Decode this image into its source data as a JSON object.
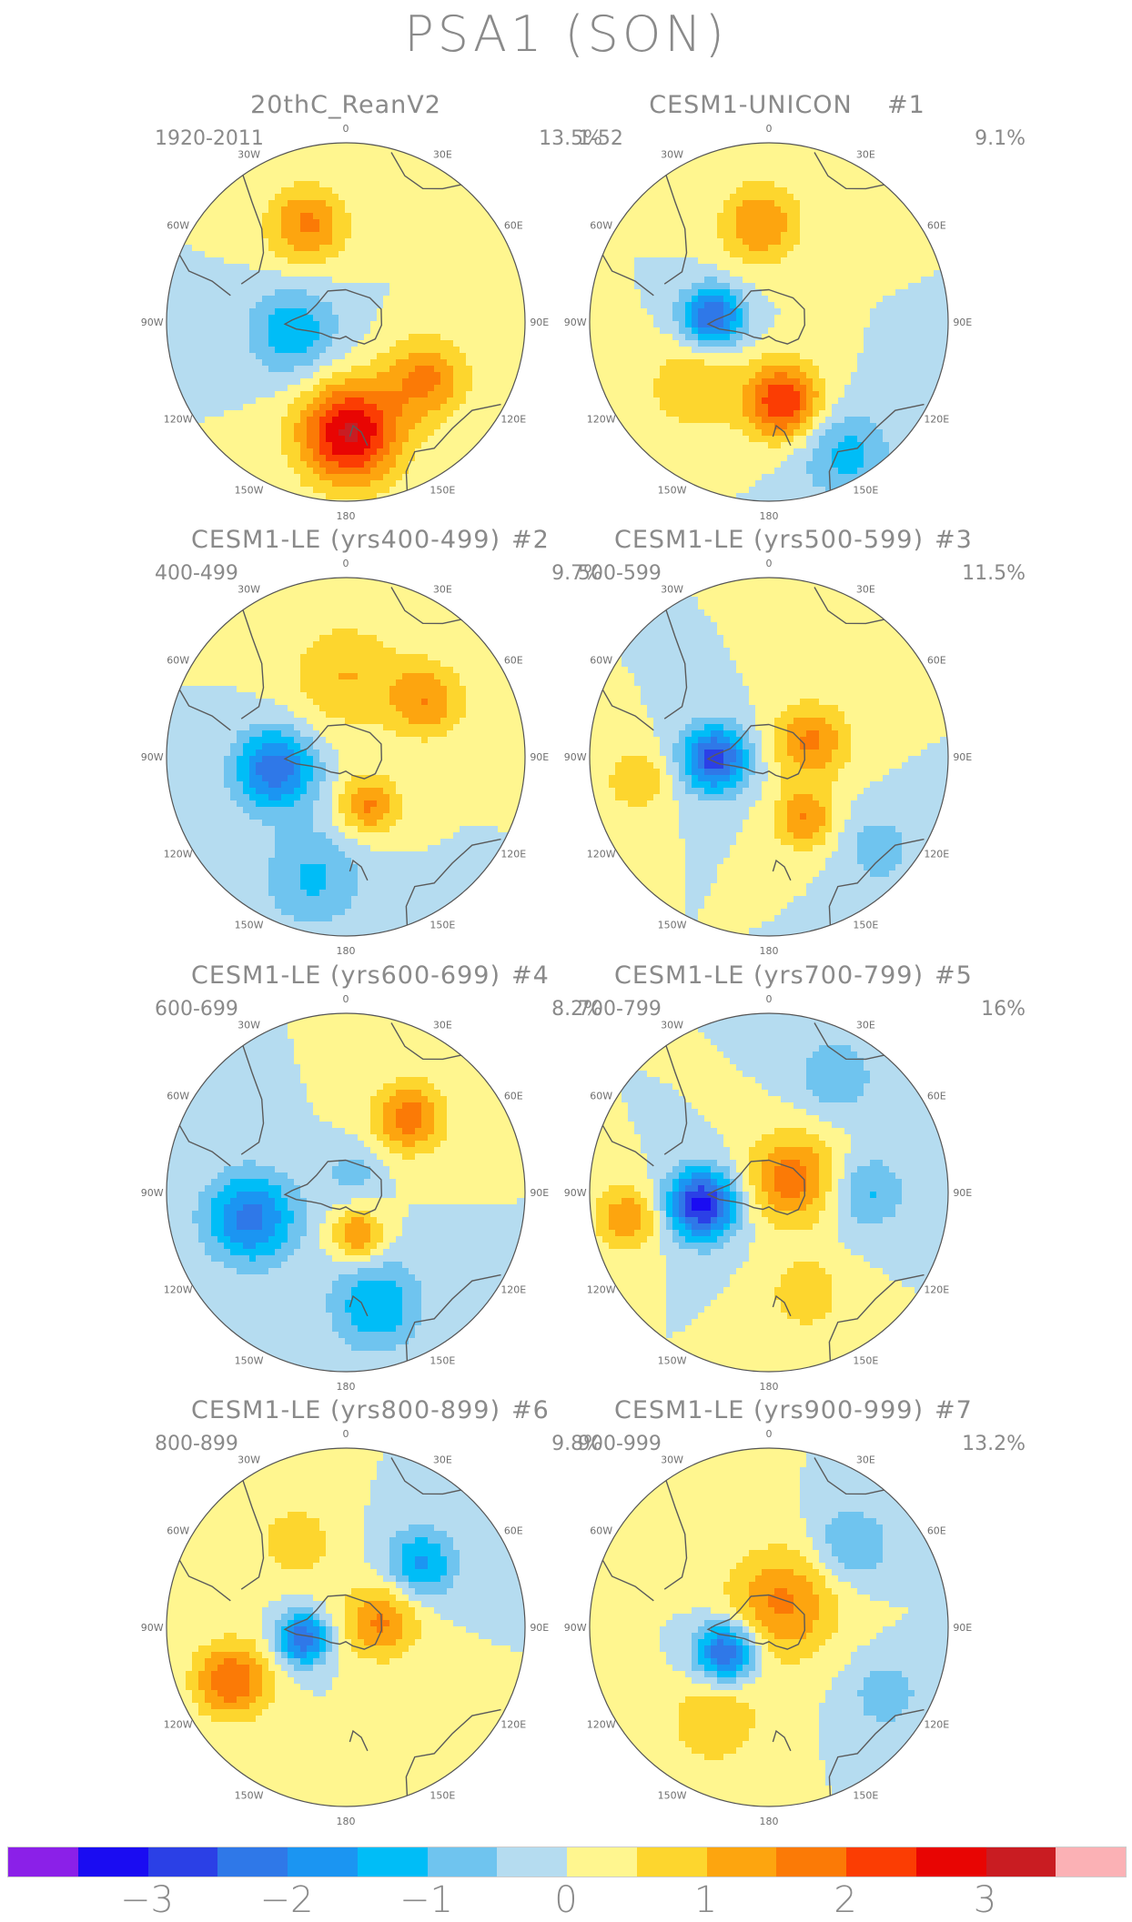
{
  "title": "PSA1 (SON)",
  "panels": [
    {
      "title": "20thC_ReanV2",
      "number": "",
      "years": "1920-2011",
      "percent": "13.5%",
      "features": [
        {
          "sign": 1,
          "amp": 3.1,
          "lon": 178,
          "r": 0.62,
          "s": 0.2
        },
        {
          "sign": 1,
          "amp": 1.6,
          "lon": 125,
          "r": 0.55,
          "s": 0.16
        },
        {
          "sign": 1,
          "amp": 1.6,
          "lon": -22,
          "r": 0.58,
          "s": 0.16
        },
        {
          "sign": -1,
          "amp": 1.4,
          "lon": -100,
          "r": 0.3,
          "s": 0.18
        }
      ]
    },
    {
      "title": "CESM1-UNICON",
      "number": "#1",
      "years": "1-52",
      "percent": "9.1%",
      "features": [
        {
          "sign": -1,
          "amp": 2.6,
          "lon": -85,
          "r": 0.32,
          "s": 0.12
        },
        {
          "sign": 1,
          "amp": 2.5,
          "lon": 170,
          "r": 0.45,
          "s": 0.15
        },
        {
          "sign": 1,
          "amp": 1.5,
          "lon": -5,
          "r": 0.55,
          "s": 0.16
        },
        {
          "sign": -1,
          "amp": 1.2,
          "lon": 150,
          "r": 0.85,
          "s": 0.18
        },
        {
          "sign": 1,
          "amp": 1.0,
          "lon": -130,
          "r": 0.55,
          "s": 0.18
        }
      ]
    },
    {
      "title": "CESM1-LE (yrs400-499)",
      "number": "#2",
      "years": "400-499",
      "percent": "9.7%",
      "features": [
        {
          "sign": -1,
          "amp": 2.4,
          "lon": -100,
          "r": 0.4,
          "s": 0.16
        },
        {
          "sign": 1,
          "amp": 1.6,
          "lon": 155,
          "r": 0.3,
          "s": 0.12
        },
        {
          "sign": 1,
          "amp": 1.4,
          "lon": 55,
          "r": 0.55,
          "s": 0.15
        },
        {
          "sign": -1,
          "amp": 1.1,
          "lon": -165,
          "r": 0.7,
          "s": 0.2
        },
        {
          "sign": 1,
          "amp": 1.0,
          "lon": 0,
          "r": 0.45,
          "s": 0.22
        }
      ]
    },
    {
      "title": "CESM1-LE (yrs500-599)",
      "number": "#3",
      "years": "500-599",
      "percent": "11.5%",
      "features": [
        {
          "sign": -1,
          "amp": 2.8,
          "lon": -92,
          "r": 0.3,
          "s": 0.13
        },
        {
          "sign": 1,
          "amp": 1.6,
          "lon": 70,
          "r": 0.25,
          "s": 0.15
        },
        {
          "sign": 1,
          "amp": 1.5,
          "lon": 150,
          "r": 0.4,
          "s": 0.12
        },
        {
          "sign": 1,
          "amp": 1.0,
          "lon": -100,
          "r": 0.75,
          "s": 0.12
        },
        {
          "sign": -1,
          "amp": 0.8,
          "lon": 130,
          "r": 0.8,
          "s": 0.15
        }
      ]
    },
    {
      "title": "CESM1-LE (yrs600-699)",
      "number": "#4",
      "years": "600-699",
      "percent": "8.2%",
      "features": [
        {
          "sign": -1,
          "amp": 2.2,
          "lon": -105,
          "r": 0.55,
          "s": 0.18
        },
        {
          "sign": 1,
          "amp": 1.8,
          "lon": 40,
          "r": 0.55,
          "s": 0.14
        },
        {
          "sign": 1,
          "amp": 1.6,
          "lon": 165,
          "r": 0.25,
          "s": 0.1
        },
        {
          "sign": -1,
          "amp": 1.5,
          "lon": 165,
          "r": 0.65,
          "s": 0.18
        },
        {
          "sign": -1,
          "amp": 0.8,
          "lon": 20,
          "r": 0.12,
          "s": 0.1
        }
      ]
    },
    {
      "title": "CESM1-LE (yrs700-799)",
      "number": "#5",
      "years": "700-799",
      "percent": "16%",
      "features": [
        {
          "sign": -1,
          "amp": 3.2,
          "lon": -100,
          "r": 0.38,
          "s": 0.14
        },
        {
          "sign": 1,
          "amp": 1.8,
          "lon": 60,
          "r": 0.15,
          "s": 0.18
        },
        {
          "sign": 1,
          "amp": 1.4,
          "lon": -100,
          "r": 0.8,
          "s": 0.13
        },
        {
          "sign": -1,
          "amp": 1.1,
          "lon": 90,
          "r": 0.55,
          "s": 0.15
        },
        {
          "sign": -1,
          "amp": 1.0,
          "lon": 30,
          "r": 0.75,
          "s": 0.15
        },
        {
          "sign": 1,
          "amp": 0.9,
          "lon": 160,
          "r": 0.6,
          "s": 0.15
        }
      ]
    },
    {
      "title": "CESM1-LE (yrs800-899)",
      "number": "#6",
      "years": "800-899",
      "percent": "9.8%",
      "features": [
        {
          "sign": -1,
          "amp": 2.5,
          "lon": -105,
          "r": 0.25,
          "s": 0.1
        },
        {
          "sign": 1,
          "amp": 2.0,
          "lon": -115,
          "r": 0.7,
          "s": 0.15
        },
        {
          "sign": 1,
          "amp": 1.6,
          "lon": 80,
          "r": 0.2,
          "s": 0.15
        },
        {
          "sign": -1,
          "amp": 1.6,
          "lon": 50,
          "r": 0.55,
          "s": 0.14
        },
        {
          "sign": 1,
          "amp": 0.9,
          "lon": -30,
          "r": 0.55,
          "s": 0.15
        }
      ]
    },
    {
      "title": "CESM1-LE (yrs900-999)",
      "number": "#7",
      "years": "900-999",
      "percent": "13.2%",
      "features": [
        {
          "sign": -1,
          "amp": 2.7,
          "lon": -120,
          "r": 0.28,
          "s": 0.12
        },
        {
          "sign": 1,
          "amp": 1.6,
          "lon": 30,
          "r": 0.15,
          "s": 0.22
        },
        {
          "sign": -1,
          "amp": 1.1,
          "lon": 45,
          "r": 0.65,
          "s": 0.15
        },
        {
          "sign": 1,
          "amp": 1.0,
          "lon": -150,
          "r": 0.6,
          "s": 0.18
        },
        {
          "sign": -1,
          "amp": 0.8,
          "lon": 120,
          "r": 0.75,
          "s": 0.15
        }
      ]
    }
  ],
  "lon_labels": [
    "0",
    "30E",
    "60E",
    "90E",
    "120E",
    "150E",
    "180",
    "150W",
    "120W",
    "90W",
    "60W",
    "30W"
  ],
  "colorbar": {
    "levels": [
      -3.5,
      -3,
      -2.5,
      -2,
      -1.5,
      -1,
      -0.5,
      0,
      0.5,
      1,
      1.5,
      2,
      2.5,
      3,
      3.5
    ],
    "colors": [
      "#8b20e8",
      "#1a0cf2",
      "#2b40e6",
      "#2f78e8",
      "#1b95f2",
      "#00bdf7",
      "#6fc4ef",
      "#b5dcf0",
      "#fff68f",
      "#fdd62e",
      "#fda50f",
      "#fb7a06",
      "#fb3d03",
      "#e80503",
      "#c91c22",
      "#fbb1b5"
    ],
    "labels": [
      "−3",
      "−2",
      "−1",
      "0",
      "1",
      "2",
      "3"
    ]
  },
  "land_color": "#5a5a5a"
}
